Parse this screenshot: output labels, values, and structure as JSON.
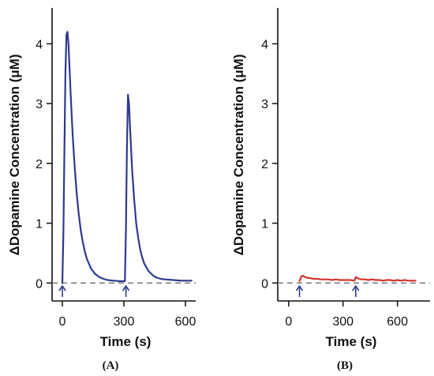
{
  "figure": {
    "panel_a_label": "(A)",
    "panel_b_label": "(B)"
  },
  "chart_data": [
    {
      "type": "line",
      "panel": "A",
      "title": "",
      "xlabel": "Time (s)",
      "ylabel": "ΔDopamine Concentration (μM)",
      "xlim": [
        -50,
        650
      ],
      "ylim": [
        -0.3,
        4.6
      ],
      "xticks": [
        0,
        300,
        600
      ],
      "xtick_labels": [
        "0",
        "300",
        "600"
      ],
      "yticks": [
        0,
        1,
        2,
        3,
        4
      ],
      "ytick_labels": [
        "0",
        "1",
        "2",
        "3",
        "4"
      ],
      "baseline": {
        "y": 0,
        "style": "dashed",
        "color": "#7f7f7f"
      },
      "stimulus_arrows_x": [
        0,
        310
      ],
      "grid": false,
      "series": [
        {
          "color": "#2e3a8c",
          "x": [
            0,
            5,
            10,
            15,
            20,
            25,
            30,
            40,
            50,
            60,
            70,
            80,
            90,
            100,
            110,
            120,
            140,
            160,
            180,
            200,
            220,
            250,
            280,
            305,
            310,
            315,
            320,
            325,
            330,
            340,
            350,
            360,
            370,
            380,
            390,
            400,
            420,
            440,
            460,
            480,
            500,
            540,
            580,
            630
          ],
          "y": [
            0.0,
            0.8,
            2.2,
            3.5,
            4.15,
            4.2,
            4.0,
            3.2,
            2.5,
            1.95,
            1.5,
            1.15,
            0.88,
            0.68,
            0.52,
            0.4,
            0.24,
            0.15,
            0.1,
            0.07,
            0.05,
            0.04,
            0.03,
            0.03,
            0.9,
            2.3,
            3.15,
            3.0,
            2.6,
            1.9,
            1.4,
            1.0,
            0.75,
            0.55,
            0.42,
            0.32,
            0.2,
            0.13,
            0.09,
            0.07,
            0.06,
            0.05,
            0.04,
            0.04
          ]
        }
      ]
    },
    {
      "type": "line",
      "panel": "B",
      "title": "",
      "xlabel": "Time (s)",
      "ylabel": "ΔDopamine Concentration (μM)",
      "xlim": [
        -60,
        780
      ],
      "ylim": [
        -0.3,
        4.6
      ],
      "xticks": [
        0,
        300,
        600
      ],
      "xtick_labels": [
        "0",
        "300",
        "600"
      ],
      "yticks": [
        0,
        1,
        2,
        3,
        4
      ],
      "ytick_labels": [
        "0",
        "1",
        "2",
        "3",
        "4"
      ],
      "baseline": {
        "y": 0,
        "style": "dashed",
        "color": "#7f7f7f"
      },
      "stimulus_arrows_x": [
        60,
        370
      ],
      "grid": false,
      "series": [
        {
          "color": "#d0342c",
          "x": [
            60,
            70,
            80,
            90,
            100,
            120,
            140,
            160,
            180,
            200,
            220,
            240,
            260,
            280,
            300,
            320,
            340,
            360,
            365,
            370,
            375,
            380,
            390,
            400,
            420,
            440,
            460,
            480,
            500,
            520,
            540,
            560,
            580,
            600,
            620,
            640,
            660,
            680,
            700
          ],
          "y": [
            0.03,
            0.11,
            0.12,
            0.1,
            0.09,
            0.08,
            0.07,
            0.07,
            0.06,
            0.06,
            0.06,
            0.05,
            0.06,
            0.05,
            0.05,
            0.05,
            0.05,
            0.04,
            0.05,
            0.1,
            0.09,
            0.08,
            0.07,
            0.06,
            0.06,
            0.05,
            0.06,
            0.05,
            0.05,
            0.04,
            0.05,
            0.05,
            0.04,
            0.05,
            0.04,
            0.05,
            0.04,
            0.04,
            0.04
          ]
        }
      ]
    }
  ]
}
